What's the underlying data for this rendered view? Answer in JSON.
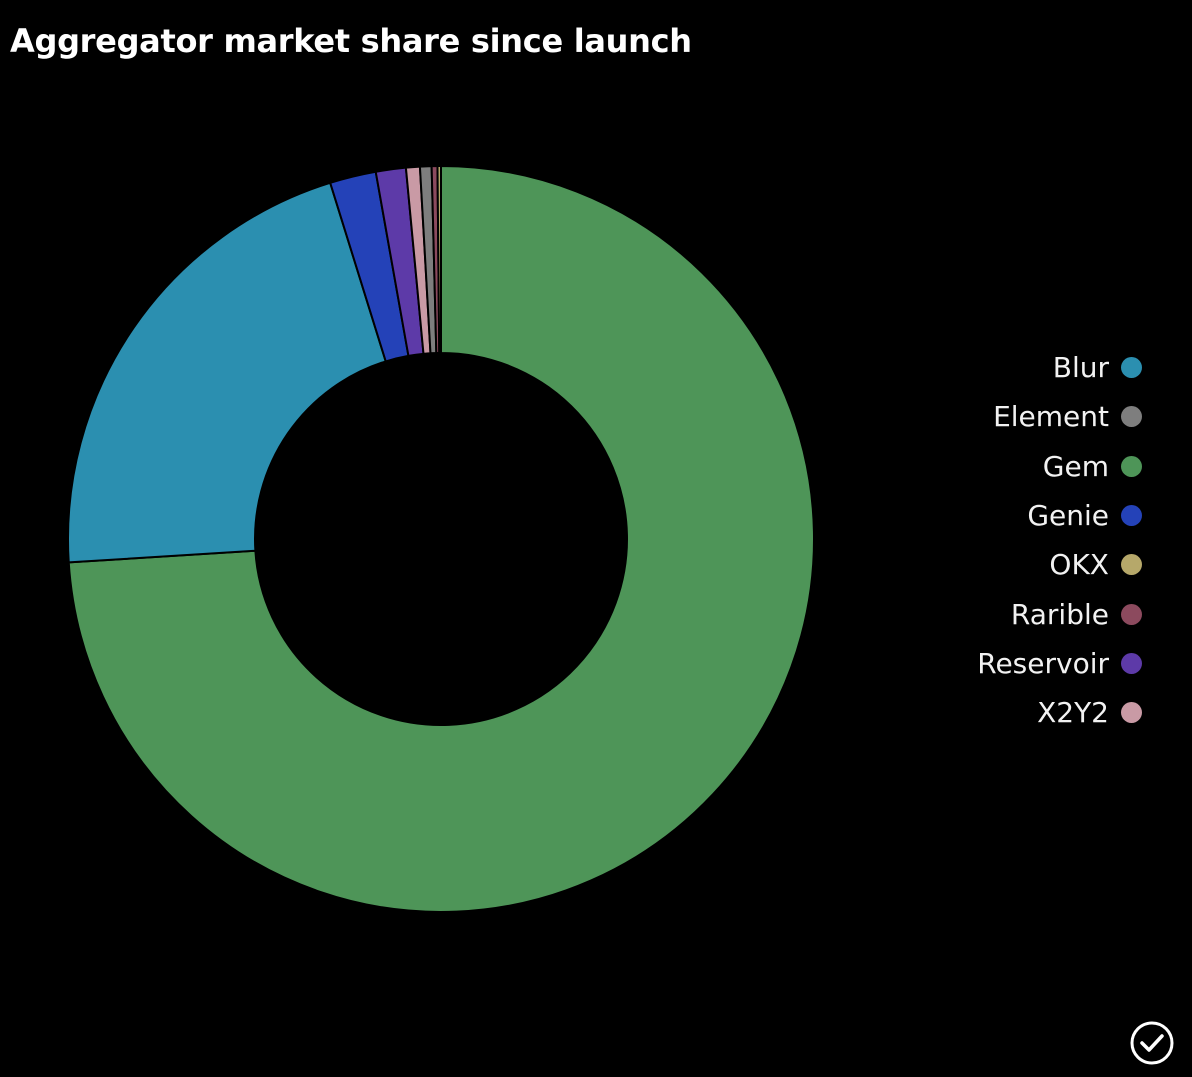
{
  "chart_data": {
    "type": "pie",
    "variant": "donut",
    "title": "Aggregator market share since launch",
    "start": "top",
    "direction": "clockwise",
    "legend_position": "right",
    "slices": [
      {
        "name": "Gem",
        "value": 74.0,
        "color": "#4e9558"
      },
      {
        "name": "Blur",
        "value": 21.2,
        "color": "#2b8fb0"
      },
      {
        "name": "Genie",
        "value": 2.0,
        "color": "#2442b8"
      },
      {
        "name": "Reservoir",
        "value": 1.3,
        "color": "#5d3aa8"
      },
      {
        "name": "X2Y2",
        "value": 0.6,
        "color": "#c99aa5"
      },
      {
        "name": "Element",
        "value": 0.5,
        "color": "#7e7e7e"
      },
      {
        "name": "Rarible",
        "value": 0.25,
        "color": "#8c4a5e"
      },
      {
        "name": "OKX",
        "value": 0.15,
        "color": "#b6a86a"
      }
    ]
  },
  "legend": {
    "items": [
      {
        "label": "Blur",
        "color": "#2b8fb0"
      },
      {
        "label": "Element",
        "color": "#7e7e7e"
      },
      {
        "label": "Gem",
        "color": "#4e9558"
      },
      {
        "label": "Genie",
        "color": "#2442b8"
      },
      {
        "label": "OKX",
        "color": "#b6a86a"
      },
      {
        "label": "Rarible",
        "color": "#8c4a5e"
      },
      {
        "label": "Reservoir",
        "color": "#5d3aa8"
      },
      {
        "label": "X2Y2",
        "color": "#c99aa5"
      }
    ]
  },
  "badge": {
    "icon": "check-circle-icon"
  }
}
